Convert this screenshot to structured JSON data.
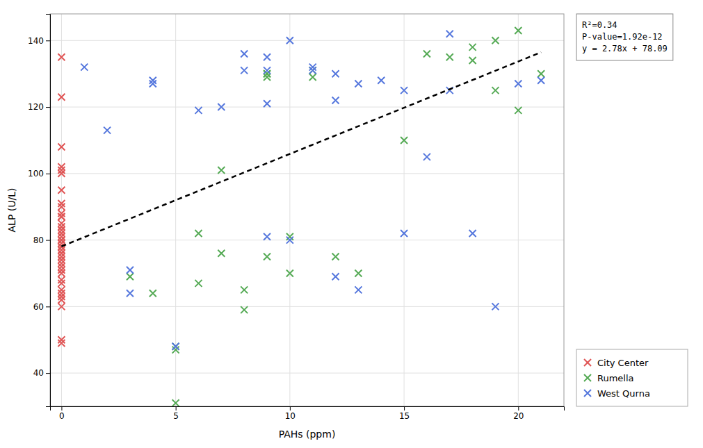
{
  "chart_data": {
    "type": "scatter",
    "xlabel": "PAHs (ppm)",
    "ylabel": "ALP (U/L)",
    "xlim": [
      -0.5,
      22
    ],
    "ylim": [
      30,
      148
    ],
    "xticks": [
      0,
      5,
      10,
      15,
      20
    ],
    "yticks": [
      40,
      60,
      80,
      100,
      120,
      140
    ],
    "grid": true,
    "legend": "lower right",
    "annotations": [
      "R²=0.34",
      "P-value=1.92e-12",
      "y = 2.78x + 78.09"
    ],
    "series": [
      {
        "name": "City Center",
        "color": "#e05555",
        "marker": "x",
        "x": [
          0,
          0,
          0,
          0,
          0,
          0,
          0,
          0,
          0,
          0,
          0,
          0,
          0,
          0,
          0,
          0,
          0,
          0,
          0,
          0,
          0,
          0,
          0,
          0,
          0,
          0,
          0,
          0,
          0,
          0,
          0,
          0,
          0,
          0,
          0,
          0,
          0,
          0,
          0,
          0
        ],
        "values": [
          135,
          123,
          108,
          102,
          101,
          100,
          95,
          91,
          90,
          88,
          87,
          87,
          85,
          84,
          83,
          82,
          81,
          80,
          80,
          79,
          79,
          78,
          78,
          77,
          76,
          75,
          74,
          73,
          72,
          71,
          70,
          68,
          67,
          65,
          64,
          63,
          62,
          60,
          50,
          49
        ]
      },
      {
        "name": "Rumella",
        "color": "#55aa55",
        "marker": "x",
        "x": [
          3,
          4,
          5,
          5,
          5,
          6,
          6,
          7,
          7,
          8,
          8,
          9,
          9,
          9,
          9,
          10,
          10,
          11,
          11,
          12,
          13,
          15,
          16,
          17,
          18,
          18,
          19,
          19,
          20,
          20,
          21
        ],
        "values": [
          69,
          64,
          48,
          47,
          31,
          82,
          67,
          101,
          76,
          65,
          59,
          130,
          130,
          129,
          75,
          81,
          70,
          131,
          129,
          75,
          70,
          110,
          136,
          135,
          138,
          134,
          140,
          125,
          143,
          119,
          130
        ]
      },
      {
        "name": "West Qurna",
        "color": "#5577dd",
        "marker": "x",
        "x": [
          1,
          2,
          3,
          3,
          4,
          4,
          5,
          6,
          7,
          8,
          8,
          9,
          9,
          9,
          9,
          10,
          10,
          11,
          11,
          12,
          12,
          12,
          13,
          13,
          14,
          15,
          15,
          16,
          17,
          17,
          18,
          19,
          20,
          21
        ],
        "values": [
          132,
          113,
          71,
          64,
          128,
          127,
          48,
          119,
          120,
          136,
          131,
          135,
          131,
          121,
          81,
          140,
          80,
          132,
          131,
          130,
          122,
          69,
          127,
          65,
          128,
          125,
          82,
          105,
          142,
          125,
          82,
          60,
          127,
          128
        ]
      },
      {
        "type": "line",
        "color": "black",
        "line_style": "dashed",
        "x": [
          0,
          21
        ],
        "values": [
          78.09,
          136.47
        ]
      }
    ]
  }
}
